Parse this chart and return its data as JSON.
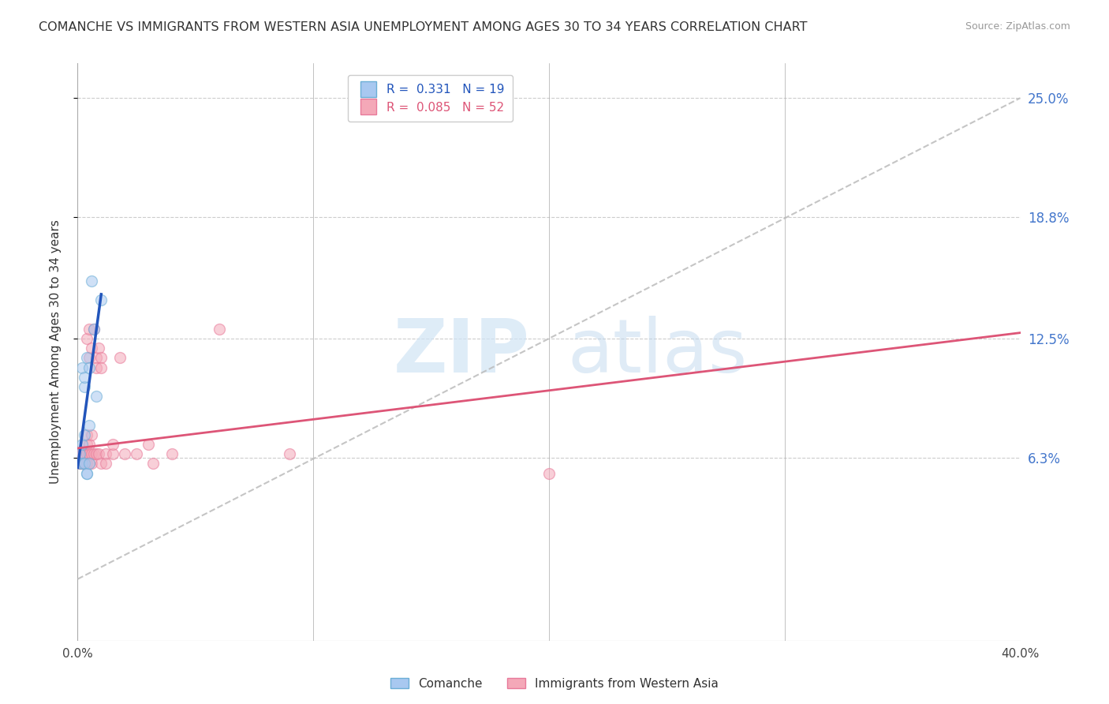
{
  "title": "COMANCHE VS IMMIGRANTS FROM WESTERN ASIA UNEMPLOYMENT AMONG AGES 30 TO 34 YEARS CORRELATION CHART",
  "source": "Source: ZipAtlas.com",
  "ylabel": "Unemployment Among Ages 30 to 34 years",
  "xlabel": "",
  "xlim": [
    0,
    0.4
  ],
  "ylim": [
    -0.032,
    0.268
  ],
  "yticks": [
    0.063,
    0.125,
    0.188,
    0.25
  ],
  "ytick_labels": [
    "6.3%",
    "12.5%",
    "18.8%",
    "25.0%"
  ],
  "xticks": [
    0.0,
    0.1,
    0.2,
    0.3,
    0.4
  ],
  "xtick_labels_show": [
    "0.0%",
    "",
    "",
    "",
    "40.0%"
  ],
  "comanche_color": "#a8c8f0",
  "comanche_edge": "#6baed6",
  "immigrants_color": "#f4a8b8",
  "immigrants_edge": "#e87a9a",
  "trend_comanche_color": "#2255bb",
  "trend_immigrants_color": "#dd5577",
  "diagonal_color": "#bbbbbb",
  "R_comanche": 0.331,
  "N_comanche": 19,
  "R_immigrants": 0.085,
  "N_immigrants": 52,
  "legend_label_comanche": "Comanche",
  "legend_label_immigrants": "Immigrants from Western Asia",
  "watermark_zip": "ZIP",
  "watermark_atlas": "atlas",
  "comanche_x": [
    0.001,
    0.001,
    0.002,
    0.002,
    0.002,
    0.003,
    0.003,
    0.003,
    0.003,
    0.004,
    0.004,
    0.004,
    0.005,
    0.005,
    0.005,
    0.006,
    0.007,
    0.008,
    0.01
  ],
  "comanche_y": [
    0.065,
    0.06,
    0.11,
    0.07,
    0.06,
    0.1,
    0.105,
    0.075,
    0.06,
    0.115,
    0.055,
    0.055,
    0.11,
    0.06,
    0.08,
    0.155,
    0.13,
    0.095,
    0.145
  ],
  "immigrants_x": [
    0.001,
    0.001,
    0.001,
    0.002,
    0.002,
    0.002,
    0.002,
    0.002,
    0.003,
    0.003,
    0.003,
    0.003,
    0.003,
    0.003,
    0.004,
    0.004,
    0.004,
    0.004,
    0.004,
    0.004,
    0.005,
    0.005,
    0.005,
    0.005,
    0.005,
    0.006,
    0.006,
    0.006,
    0.006,
    0.007,
    0.007,
    0.008,
    0.008,
    0.008,
    0.009,
    0.009,
    0.01,
    0.01,
    0.01,
    0.012,
    0.012,
    0.015,
    0.015,
    0.018,
    0.02,
    0.025,
    0.03,
    0.032,
    0.04,
    0.06,
    0.09,
    0.2
  ],
  "immigrants_y": [
    0.065,
    0.06,
    0.06,
    0.065,
    0.06,
    0.065,
    0.06,
    0.06,
    0.065,
    0.06,
    0.06,
    0.06,
    0.065,
    0.06,
    0.125,
    0.06,
    0.065,
    0.07,
    0.075,
    0.06,
    0.13,
    0.115,
    0.07,
    0.065,
    0.06,
    0.12,
    0.075,
    0.065,
    0.06,
    0.13,
    0.065,
    0.115,
    0.11,
    0.065,
    0.12,
    0.065,
    0.115,
    0.11,
    0.06,
    0.065,
    0.06,
    0.065,
    0.07,
    0.115,
    0.065,
    0.065,
    0.07,
    0.06,
    0.065,
    0.13,
    0.065,
    0.055
  ],
  "marker_size": 100,
  "alpha_fill": 0.55,
  "background_color": "#ffffff",
  "grid_color": "#cccccc",
  "right_tick_color": "#4477cc",
  "title_fontsize": 11.5,
  "source_fontsize": 9,
  "ylabel_fontsize": 11,
  "legend_fontsize": 11,
  "trend_comanche_intercept": 0.058,
  "trend_comanche_slope": 9.0,
  "trend_immigrants_intercept": 0.068,
  "trend_immigrants_slope": 0.15
}
